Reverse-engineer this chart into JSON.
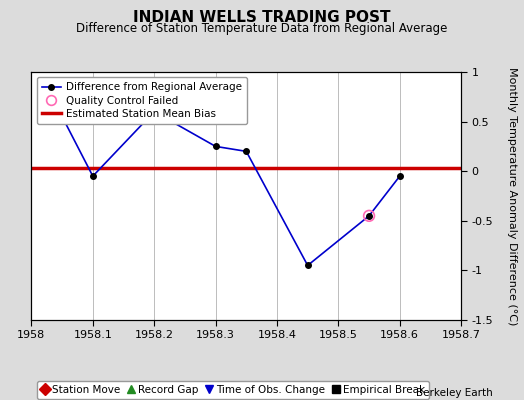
{
  "title": "INDIAN WELLS TRADING POST",
  "subtitle": "Difference of Station Temperature Data from Regional Average",
  "ylabel_right": "Monthly Temperature Anomaly Difference (°C)",
  "x_values": [
    1958.05,
    1958.1,
    1958.2,
    1958.3,
    1958.35,
    1958.45,
    1958.55,
    1958.6
  ],
  "y_values": [
    0.55,
    -0.05,
    0.6,
    0.25,
    0.2,
    -0.95,
    -0.45,
    -0.05
  ],
  "qc_failed_x": [
    1958.55
  ],
  "qc_failed_y": [
    -0.45
  ],
  "bias_value": 0.03,
  "xlim": [
    1958.0,
    1958.7
  ],
  "ylim": [
    -1.5,
    1.0
  ],
  "yticks": [
    -1.5,
    -1.0,
    -0.5,
    0.0,
    0.5,
    1.0
  ],
  "ytick_labels": [
    "-1.5",
    "-1",
    "-0.5",
    "0",
    "0.5",
    "1"
  ],
  "xticks": [
    1958.0,
    1958.1,
    1958.2,
    1958.3,
    1958.4,
    1958.5,
    1958.6,
    1958.7
  ],
  "xtick_labels": [
    "1958",
    "1958.1",
    "1958.2",
    "1958.3",
    "1958.4",
    "1958.5",
    "1958.6",
    "1958.7"
  ],
  "line_color": "#0000CC",
  "marker_color": "#000000",
  "bias_color": "#CC0000",
  "qc_color": "#FF69B4",
  "bg_color": "#DCDCDC",
  "plot_bg_color": "#FFFFFF",
  "grid_color": "#AAAAAA",
  "berkeley_earth_text": "Berkeley Earth",
  "legend1_entries": [
    {
      "label": "Difference from Regional Average",
      "color": "#0000CC",
      "type": "line_marker"
    },
    {
      "label": "Quality Control Failed",
      "color": "#FF69B4",
      "type": "circle"
    },
    {
      "label": "Estimated Station Mean Bias",
      "color": "#CC0000",
      "type": "line"
    }
  ],
  "legend2_entries": [
    {
      "label": "Station Move",
      "color": "#CC0000",
      "type": "diamond"
    },
    {
      "label": "Record Gap",
      "color": "#228B22",
      "type": "triangle_up"
    },
    {
      "label": "Time of Obs. Change",
      "color": "#0000CC",
      "type": "triangle_down"
    },
    {
      "label": "Empirical Break",
      "color": "#000000",
      "type": "square"
    }
  ],
  "title_fontsize": 11,
  "subtitle_fontsize": 8.5,
  "tick_fontsize": 8,
  "legend_fontsize": 7.5,
  "ylabel_fontsize": 8
}
